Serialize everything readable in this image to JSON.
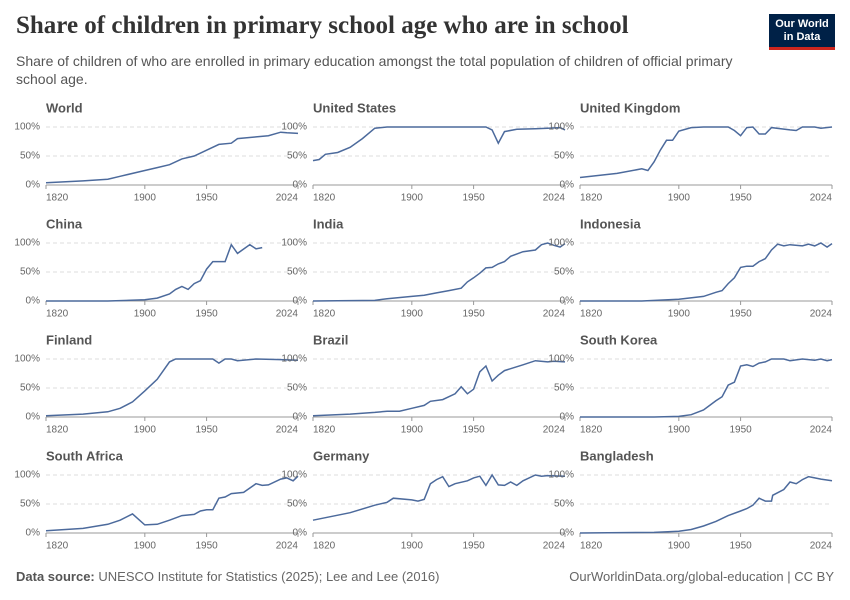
{
  "header": {
    "title": "Share of children in primary school age who are in school",
    "subtitle": "Share of children of who are enrolled in primary education amongst the total population of children of official primary school age.",
    "logo": "Our World in Data"
  },
  "footer": {
    "source_label": "Data source:",
    "source": "UNESCO Institute for Statistics (2025); Lee and Lee (2016)",
    "credit": "OurWorldinData.org/global-education | CC BY"
  },
  "chart_data": [
    {
      "type": "line",
      "title": "World",
      "color": "#4c6a9c",
      "xlim": [
        1820,
        2024
      ],
      "ylim": [
        0,
        100
      ],
      "xticks": [
        1820,
        1900,
        1950,
        2024
      ],
      "yticks": [
        {
          "value": 0,
          "label": "0%"
        },
        {
          "value": 50,
          "label": "50%"
        },
        {
          "value": 100,
          "label": "100%"
        }
      ],
      "x": [
        1820,
        1850,
        1870,
        1880,
        1900,
        1910,
        1920,
        1930,
        1940,
        1950,
        1960,
        1970,
        1975,
        1990,
        2000,
        2010,
        2015,
        2024
      ],
      "values": [
        4,
        7,
        10,
        15,
        25,
        30,
        35,
        45,
        50,
        60,
        70,
        72,
        80,
        83,
        85,
        91,
        90,
        89
      ]
    },
    {
      "type": "line",
      "title": "United States",
      "color": "#4c6a9c",
      "xlim": [
        1820,
        2024
      ],
      "ylim": [
        0,
        100
      ],
      "xticks": [
        1820,
        1900,
        1950,
        2024
      ],
      "yticks": [
        {
          "value": 0,
          "label": "0%"
        },
        {
          "value": 50,
          "label": "50%"
        },
        {
          "value": 100,
          "label": "100%"
        }
      ],
      "x": [
        1820,
        1825,
        1830,
        1840,
        1850,
        1860,
        1870,
        1880,
        1950,
        1960,
        1965,
        1970,
        1975,
        1985,
        2000,
        2010,
        2020,
        2024
      ],
      "values": [
        42,
        44,
        53,
        56,
        65,
        80,
        98,
        100,
        100,
        100,
        95,
        72,
        92,
        96,
        97,
        98,
        99,
        95
      ]
    },
    {
      "type": "line",
      "title": "United Kingdom",
      "color": "#4c6a9c",
      "xlim": [
        1820,
        2024
      ],
      "ylim": [
        0,
        100
      ],
      "xticks": [
        1820,
        1900,
        1950,
        2024
      ],
      "yticks": [
        {
          "value": 0,
          "label": "0%"
        },
        {
          "value": 50,
          "label": "50%"
        },
        {
          "value": 100,
          "label": "100%"
        }
      ],
      "x": [
        1820,
        1850,
        1870,
        1875,
        1880,
        1885,
        1890,
        1895,
        1900,
        1910,
        1920,
        1940,
        1945,
        1950,
        1955,
        1960,
        1965,
        1970,
        1975,
        1990,
        1995,
        2000,
        2010,
        2015,
        2024
      ],
      "values": [
        13,
        20,
        28,
        25,
        40,
        60,
        77,
        77,
        93,
        99,
        100,
        100,
        94,
        85,
        99,
        100,
        88,
        88,
        99,
        95,
        94,
        100,
        100,
        98,
        100
      ]
    },
    {
      "type": "line",
      "title": "China",
      "color": "#4c6a9c",
      "xlim": [
        1820,
        2024
      ],
      "ylim": [
        0,
        100
      ],
      "xticks": [
        1820,
        1900,
        1950,
        2024
      ],
      "yticks": [
        {
          "value": 0,
          "label": "0%"
        },
        {
          "value": 50,
          "label": "50%"
        },
        {
          "value": 100,
          "label": "100%"
        }
      ],
      "x": [
        1820,
        1870,
        1900,
        1910,
        1920,
        1925,
        1930,
        1935,
        1940,
        1945,
        1950,
        1955,
        1965,
        1970,
        1975,
        1985,
        1990,
        1995
      ],
      "values": [
        0,
        0,
        2,
        5,
        12,
        20,
        25,
        20,
        30,
        35,
        55,
        68,
        68,
        97,
        82,
        97,
        90,
        92
      ]
    },
    {
      "type": "line",
      "title": "India",
      "color": "#4c6a9c",
      "xlim": [
        1820,
        2024
      ],
      "ylim": [
        0,
        100
      ],
      "xticks": [
        1820,
        1900,
        1950,
        2024
      ],
      "yticks": [
        {
          "value": 0,
          "label": "0%"
        },
        {
          "value": 50,
          "label": "50%"
        },
        {
          "value": 100,
          "label": "100%"
        }
      ],
      "x": [
        1820,
        1870,
        1880,
        1900,
        1910,
        1920,
        1930,
        1940,
        1945,
        1950,
        1955,
        1960,
        1965,
        1970,
        1975,
        1980,
        1990,
        2000,
        2005,
        2010,
        2015,
        2020,
        2024
      ],
      "values": [
        0,
        1,
        4,
        8,
        10,
        14,
        18,
        22,
        33,
        40,
        48,
        57,
        58,
        64,
        68,
        77,
        85,
        88,
        97,
        100,
        96,
        93,
        99
      ]
    },
    {
      "type": "line",
      "title": "Indonesia",
      "color": "#4c6a9c",
      "xlim": [
        1820,
        2024
      ],
      "ylim": [
        0,
        100
      ],
      "xticks": [
        1820,
        1900,
        1950,
        2024
      ],
      "yticks": [
        {
          "value": 0,
          "label": "0%"
        },
        {
          "value": 50,
          "label": "50%"
        },
        {
          "value": 100,
          "label": "100%"
        }
      ],
      "x": [
        1820,
        1870,
        1900,
        1920,
        1930,
        1935,
        1940,
        1945,
        1950,
        1955,
        1960,
        1965,
        1970,
        1975,
        1980,
        1985,
        1990,
        2000,
        2005,
        2010,
        2015,
        2020,
        2024
      ],
      "values": [
        0,
        0,
        3,
        8,
        15,
        18,
        30,
        40,
        58,
        60,
        60,
        68,
        73,
        88,
        98,
        95,
        97,
        95,
        98,
        95,
        100,
        93,
        99
      ]
    },
    {
      "type": "line",
      "title": "Finland",
      "color": "#4c6a9c",
      "xlim": [
        1820,
        2024
      ],
      "ylim": [
        0,
        100
      ],
      "xticks": [
        1820,
        1900,
        1950,
        2024
      ],
      "yticks": [
        {
          "value": 0,
          "label": "0%"
        },
        {
          "value": 50,
          "label": "50%"
        },
        {
          "value": 100,
          "label": "100%"
        }
      ],
      "x": [
        1820,
        1850,
        1870,
        1880,
        1890,
        1900,
        1910,
        1920,
        1925,
        1955,
        1960,
        1965,
        1970,
        1975,
        1990,
        2010,
        2024
      ],
      "values": [
        2,
        5,
        9,
        15,
        26,
        45,
        65,
        95,
        100,
        100,
        93,
        100,
        100,
        97,
        100,
        99,
        98
      ]
    },
    {
      "type": "line",
      "title": "Brazil",
      "color": "#4c6a9c",
      "xlim": [
        1820,
        2024
      ],
      "ylim": [
        0,
        100
      ],
      "xticks": [
        1820,
        1900,
        1950,
        2024
      ],
      "yticks": [
        {
          "value": 0,
          "label": "0%"
        },
        {
          "value": 50,
          "label": "50%"
        },
        {
          "value": 100,
          "label": "100%"
        }
      ],
      "x": [
        1820,
        1850,
        1870,
        1880,
        1890,
        1900,
        1910,
        1915,
        1925,
        1930,
        1935,
        1940,
        1945,
        1950,
        1955,
        1960,
        1965,
        1970,
        1975,
        1990,
        2000,
        2010,
        2015,
        2024
      ],
      "values": [
        2,
        5,
        8,
        10,
        10,
        15,
        20,
        27,
        30,
        35,
        40,
        52,
        40,
        48,
        78,
        88,
        62,
        72,
        80,
        90,
        97,
        95,
        96,
        95
      ]
    },
    {
      "type": "line",
      "title": "South Korea",
      "color": "#4c6a9c",
      "xlim": [
        1820,
        2024
      ],
      "ylim": [
        0,
        100
      ],
      "xticks": [
        1820,
        1900,
        1950,
        2024
      ],
      "yticks": [
        {
          "value": 0,
          "label": "0%"
        },
        {
          "value": 50,
          "label": "50%"
        },
        {
          "value": 100,
          "label": "100%"
        }
      ],
      "x": [
        1820,
        1880,
        1900,
        1910,
        1920,
        1925,
        1930,
        1935,
        1940,
        1945,
        1950,
        1955,
        1960,
        1965,
        1970,
        1975,
        1985,
        1990,
        2000,
        2010,
        2015,
        2020,
        2024
      ],
      "values": [
        0,
        0,
        1,
        4,
        12,
        20,
        28,
        35,
        55,
        60,
        88,
        90,
        87,
        93,
        95,
        100,
        100,
        97,
        100,
        98,
        100,
        97,
        99
      ]
    },
    {
      "type": "line",
      "title": "South Africa",
      "color": "#4c6a9c",
      "xlim": [
        1820,
        2024
      ],
      "ylim": [
        0,
        100
      ],
      "xticks": [
        1820,
        1900,
        1950,
        2024
      ],
      "yticks": [
        {
          "value": 0,
          "label": "0%"
        },
        {
          "value": 50,
          "label": "50%"
        },
        {
          "value": 100,
          "label": "100%"
        }
      ],
      "x": [
        1820,
        1850,
        1870,
        1880,
        1890,
        1900,
        1910,
        1920,
        1930,
        1940,
        1945,
        1950,
        1955,
        1960,
        1965,
        1970,
        1980,
        1990,
        1995,
        2000,
        2010,
        2015,
        2020,
        2024
      ],
      "values": [
        4,
        8,
        15,
        22,
        33,
        14,
        15,
        22,
        30,
        32,
        38,
        40,
        40,
        60,
        62,
        68,
        70,
        85,
        82,
        83,
        93,
        95,
        90,
        98
      ]
    },
    {
      "type": "line",
      "title": "Germany",
      "color": "#4c6a9c",
      "xlim": [
        1820,
        2024
      ],
      "ylim": [
        0,
        100
      ],
      "xticks": [
        1820,
        1900,
        1950,
        2024
      ],
      "yticks": [
        {
          "value": 0,
          "label": "0%"
        },
        {
          "value": 50,
          "label": "50%"
        },
        {
          "value": 100,
          "label": "100%"
        }
      ],
      "x": [
        1820,
        1850,
        1870,
        1880,
        1885,
        1900,
        1905,
        1910,
        1915,
        1920,
        1925,
        1930,
        1935,
        1945,
        1950,
        1955,
        1960,
        1965,
        1970,
        1975,
        1980,
        1985,
        1990,
        2000,
        2005,
        2010,
        2024
      ],
      "values": [
        22,
        35,
        48,
        53,
        60,
        57,
        55,
        58,
        85,
        92,
        97,
        80,
        85,
        90,
        95,
        98,
        82,
        100,
        83,
        82,
        88,
        82,
        90,
        100,
        98,
        99,
        98
      ]
    },
    {
      "type": "line",
      "title": "Bangladesh",
      "color": "#4c6a9c",
      "xlim": [
        1820,
        2024
      ],
      "ylim": [
        0,
        100
      ],
      "xticks": [
        1820,
        1900,
        1950,
        2024
      ],
      "yticks": [
        {
          "value": 0,
          "label": "0%"
        },
        {
          "value": 50,
          "label": "50%"
        },
        {
          "value": 100,
          "label": "100%"
        }
      ],
      "x": [
        1820,
        1880,
        1900,
        1910,
        1920,
        1930,
        1940,
        1950,
        1955,
        1960,
        1965,
        1970,
        1975,
        1976,
        1985,
        1990,
        1995,
        2000,
        2005,
        2010,
        2015,
        2024
      ],
      "values": [
        0,
        1,
        3,
        6,
        12,
        20,
        30,
        38,
        42,
        48,
        60,
        55,
        55,
        65,
        75,
        88,
        85,
        92,
        97,
        95,
        93,
        90
      ]
    }
  ]
}
